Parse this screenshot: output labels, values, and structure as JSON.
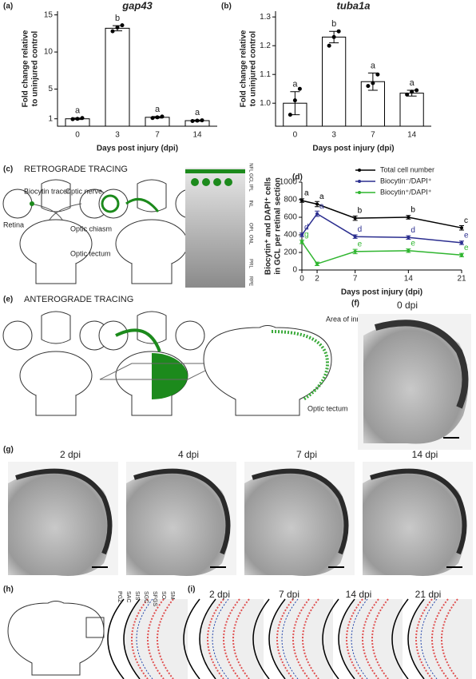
{
  "chart_data": [
    {
      "type": "bar",
      "panel": "(a)",
      "title": "gap43",
      "ylabel": [
        "Fold change relative",
        "to uninjured control"
      ],
      "xlabel": "Days post injury (dpi)",
      "categories": [
        "0",
        "3",
        "7",
        "14"
      ],
      "values": [
        1,
        13.2,
        1.2,
        0.75
      ],
      "errors": [
        0.1,
        0.35,
        0.1,
        0.08
      ],
      "points": [
        [
          0.95,
          1.0,
          1.1
        ],
        [
          12.8,
          13.3,
          13.6
        ],
        [
          1.1,
          1.2,
          1.3
        ],
        [
          0.7,
          0.75,
          0.8
        ]
      ],
      "letters": [
        "a",
        "b",
        "a",
        "a"
      ],
      "color": "#ffffff",
      "ylim": [
        0,
        15.5
      ],
      "yticks": [
        1,
        5,
        10,
        15
      ]
    },
    {
      "type": "bar",
      "panel": "(b)",
      "title": "tuba1a",
      "ylabel": [
        "Fold change relative",
        "to uninjured control"
      ],
      "xlabel": "Days post injury (dpi)",
      "categories": [
        "0",
        "3",
        "7",
        "14"
      ],
      "values": [
        1.0,
        1.23,
        1.075,
        1.035
      ],
      "errors": [
        0.04,
        0.02,
        0.03,
        0.01
      ],
      "points": [
        [
          0.96,
          1.01,
          1.05
        ],
        [
          1.2,
          1.23,
          1.25
        ],
        [
          1.06,
          1.07,
          1.1
        ],
        [
          1.03,
          1.04,
          1.045
        ]
      ],
      "letters": [
        "a",
        "b",
        "a",
        "a"
      ],
      "color": "#ffffff",
      "ylim": [
        0.92,
        1.32
      ],
      "yticks": [
        {
          "value": 1.0,
          "label": "1.0"
        },
        {
          "value": 1.1,
          "label": "1.1"
        },
        {
          "value": 1.2,
          "label": "1.2"
        },
        {
          "value": 1.3,
          "label": "1.3"
        }
      ]
    },
    {
      "type": "line",
      "panel": "(d)",
      "ylabel": [
        "Biocytin⁺ and DAPI⁺ cells",
        "in GCL per retinal section"
      ],
      "xlabel": "Days post injury (dpi)",
      "x": [
        0,
        2,
        7,
        14,
        21
      ],
      "xlim": [
        0,
        21
      ],
      "xticks": [
        0,
        2,
        7,
        14,
        21
      ],
      "ylim": [
        0,
        1000
      ],
      "yticks": [
        0,
        200,
        400,
        600,
        800,
        1000
      ],
      "series": [
        {
          "name": "Total cell number",
          "color": "#000000",
          "values": [
            790,
            750,
            590,
            600,
            480
          ],
          "errors": [
            20,
            30,
            25,
            20,
            25
          ],
          "letters": [
            "a",
            "a",
            "b",
            "b",
            "c"
          ]
        },
        {
          "name": "Biocytin⁻/DAPI⁺",
          "color": "#2b2e8f",
          "values": [
            400,
            640,
            380,
            370,
            310
          ],
          "errors": [
            20,
            30,
            20,
            20,
            20
          ],
          "letters": [
            "d",
            "a",
            "d",
            "d",
            "e"
          ]
        },
        {
          "name": "Biocytin⁺/DAPI⁺",
          "color": "#2fb52f",
          "values": [
            320,
            70,
            210,
            220,
            170
          ],
          "errors": [
            20,
            20,
            25,
            20,
            20
          ],
          "letters": [
            "g",
            null,
            "e",
            "e",
            "e"
          ]
        }
      ]
    }
  ],
  "panels": {
    "c": {
      "label": "(c)",
      "title": "RETROGRADE TRACING",
      "tracer": "Biocytin tracer",
      "nerve": "Optic nerve",
      "retina": "Retina",
      "chiasm": "Optic chiasm",
      "tectum": "Optic tectum",
      "layers": [
        "NFL GCL IPL",
        "INL",
        "OPL",
        "ONL",
        "PRL",
        "RPE"
      ]
    },
    "e": {
      "label": "(e)",
      "title": "ANTEROGRADE TRACING",
      "area": "Area of innervation",
      "tectum": "Optic tectum"
    },
    "f": {
      "label": "(f)",
      "day": "0 dpi"
    },
    "g": {
      "label": "(g)",
      "days": [
        "2 dpi",
        "4 dpi",
        "7 dpi",
        "14 dpi"
      ]
    },
    "h": {
      "label": "(h)",
      "layers": [
        "PGZ",
        "SAC",
        "SIS",
        "SGC",
        "SFGS",
        "SO",
        "SM"
      ]
    },
    "i": {
      "label": "(i)",
      "days": [
        "2 dpi",
        "7 dpi",
        "14 dpi",
        "21 dpi"
      ]
    }
  }
}
